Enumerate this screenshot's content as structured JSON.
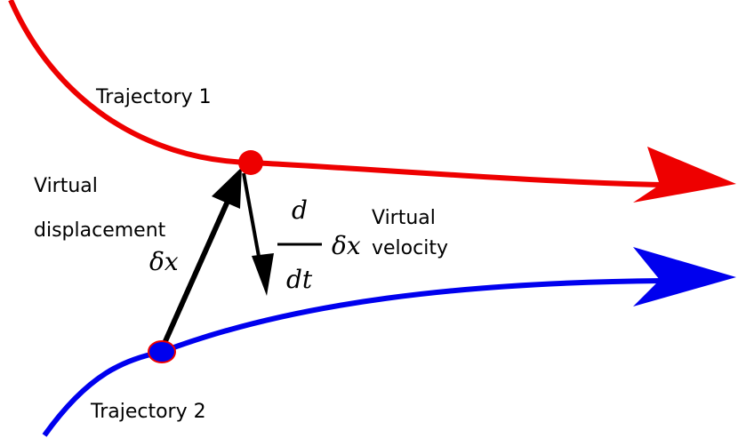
{
  "diagram": {
    "trajectory_1": {
      "label": "Trajectory 1"
    },
    "trajectory_2": {
      "label": "Trajectory 2"
    },
    "virtual_displacement": {
      "label_line1": "Virtual",
      "label_line2": "displacement",
      "symbol": "δx"
    },
    "virtual_velocity": {
      "numerator": "d",
      "denominator": "dt",
      "symbol": "δx",
      "label_line1": "Virtual",
      "label_line2": "velocity"
    }
  }
}
